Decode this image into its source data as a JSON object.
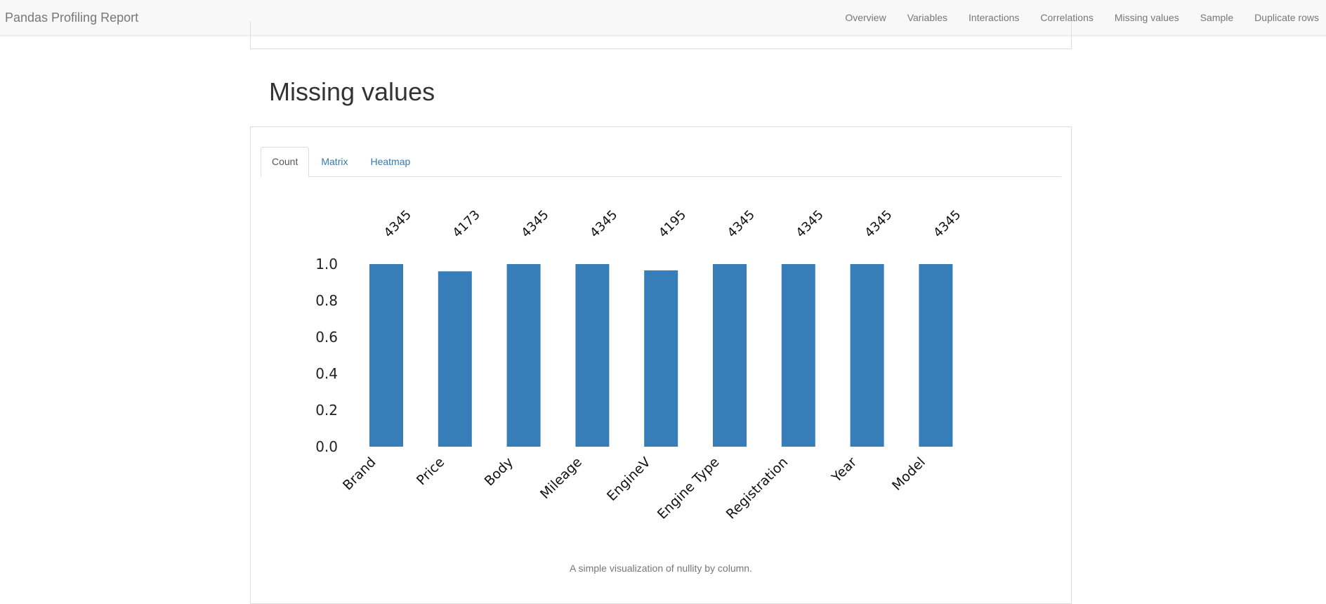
{
  "navbar": {
    "brand": "Pandas Profiling Report",
    "links": [
      "Overview",
      "Variables",
      "Interactions",
      "Correlations",
      "Missing values",
      "Sample",
      "Duplicate rows"
    ]
  },
  "section": {
    "title": "Missing values"
  },
  "tabs": [
    "Count",
    "Matrix",
    "Heatmap"
  ],
  "active_tab": "Count",
  "caption": "A simple visualization of nullity by column.",
  "colors": {
    "bar": "#377eb8",
    "link": "#337ab7"
  },
  "chart_data": {
    "type": "bar",
    "categories": [
      "Brand",
      "Price",
      "Body",
      "Mileage",
      "EngineV",
      "Engine Type",
      "Registration",
      "Year",
      "Model"
    ],
    "values": [
      1.0,
      0.9604,
      1.0,
      1.0,
      0.9655,
      1.0,
      1.0,
      1.0,
      1.0
    ],
    "data_labels": [
      "4345",
      "4173",
      "4345",
      "4345",
      "4195",
      "4345",
      "4345",
      "4345",
      "4345"
    ],
    "yticks": [
      "0.0",
      "0.2",
      "0.4",
      "0.6",
      "0.8",
      "1.0"
    ],
    "ylim": [
      0,
      1
    ],
    "grid": false,
    "legend": "none"
  }
}
